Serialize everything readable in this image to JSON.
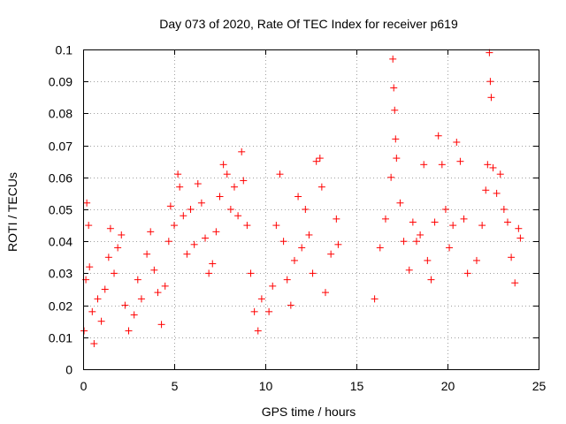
{
  "chart_data": {
    "type": "scatter",
    "title": "Day 073 of 2020, Rate Of TEC Index for receiver p619",
    "xlabel": "GPS time / hours",
    "ylabel": "ROTI / TECUs",
    "xlim": [
      0,
      25
    ],
    "ylim": [
      0,
      0.1
    ],
    "x_ticks": [
      "0",
      "5",
      "10",
      "15",
      "20",
      "25"
    ],
    "y_ticks": [
      "0",
      "0.01",
      "0.02",
      "0.03",
      "0.04",
      "0.05",
      "0.06",
      "0.07",
      "0.08",
      "0.09",
      "0.1"
    ],
    "x_tick_values": [
      0,
      5,
      10,
      15,
      20,
      25
    ],
    "y_tick_values": [
      0,
      0.01,
      0.02,
      0.03,
      0.04,
      0.05,
      0.06,
      0.07,
      0.08,
      0.09,
      0.1
    ],
    "grid": true,
    "marker": "plus",
    "color": "#ff0000",
    "series": [
      {
        "points": [
          [
            0.05,
            0.012
          ],
          [
            0.15,
            0.028
          ],
          [
            0.2,
            0.052
          ],
          [
            0.3,
            0.045
          ],
          [
            0.35,
            0.032
          ],
          [
            0.5,
            0.018
          ],
          [
            0.6,
            0.008
          ],
          [
            0.8,
            0.022
          ],
          [
            1.0,
            0.015
          ],
          [
            1.2,
            0.025
          ],
          [
            1.4,
            0.035
          ],
          [
            1.5,
            0.044
          ],
          [
            1.7,
            0.03
          ],
          [
            1.9,
            0.038
          ],
          [
            2.1,
            0.042
          ],
          [
            2.3,
            0.02
          ],
          [
            2.5,
            0.012
          ],
          [
            2.8,
            0.017
          ],
          [
            3.0,
            0.028
          ],
          [
            3.2,
            0.022
          ],
          [
            3.5,
            0.036
          ],
          [
            3.7,
            0.043
          ],
          [
            3.9,
            0.031
          ],
          [
            4.1,
            0.024
          ],
          [
            4.3,
            0.014
          ],
          [
            4.5,
            0.026
          ],
          [
            4.7,
            0.04
          ],
          [
            4.8,
            0.051
          ],
          [
            5.0,
            0.045
          ],
          [
            5.2,
            0.061
          ],
          [
            5.3,
            0.057
          ],
          [
            5.5,
            0.048
          ],
          [
            5.7,
            0.036
          ],
          [
            5.9,
            0.05
          ],
          [
            6.1,
            0.039
          ],
          [
            6.3,
            0.058
          ],
          [
            6.5,
            0.052
          ],
          [
            6.7,
            0.041
          ],
          [
            6.9,
            0.03
          ],
          [
            7.1,
            0.033
          ],
          [
            7.3,
            0.043
          ],
          [
            7.5,
            0.054
          ],
          [
            7.7,
            0.064
          ],
          [
            7.9,
            0.061
          ],
          [
            8.1,
            0.05
          ],
          [
            8.3,
            0.057
          ],
          [
            8.5,
            0.048
          ],
          [
            8.7,
            0.068
          ],
          [
            8.8,
            0.059
          ],
          [
            9.0,
            0.045
          ],
          [
            9.2,
            0.03
          ],
          [
            9.4,
            0.018
          ],
          [
            9.6,
            0.012
          ],
          [
            9.8,
            0.022
          ],
          [
            10.2,
            0.018
          ],
          [
            10.4,
            0.026
          ],
          [
            10.6,
            0.045
          ],
          [
            10.8,
            0.061
          ],
          [
            11.0,
            0.04
          ],
          [
            11.2,
            0.028
          ],
          [
            11.4,
            0.02
          ],
          [
            11.6,
            0.034
          ],
          [
            11.8,
            0.054
          ],
          [
            12.0,
            0.038
          ],
          [
            12.2,
            0.05
          ],
          [
            12.4,
            0.042
          ],
          [
            12.6,
            0.03
          ],
          [
            12.8,
            0.065
          ],
          [
            13.0,
            0.066
          ],
          [
            13.1,
            0.057
          ],
          [
            13.3,
            0.024
          ],
          [
            13.6,
            0.036
          ],
          [
            13.9,
            0.047
          ],
          [
            14.0,
            0.039
          ],
          [
            16.0,
            0.022
          ],
          [
            16.3,
            0.038
          ],
          [
            16.6,
            0.047
          ],
          [
            16.9,
            0.06
          ],
          [
            17.0,
            0.097
          ],
          [
            17.05,
            0.088
          ],
          [
            17.1,
            0.081
          ],
          [
            17.15,
            0.072
          ],
          [
            17.2,
            0.066
          ],
          [
            17.4,
            0.052
          ],
          [
            17.6,
            0.04
          ],
          [
            17.9,
            0.031
          ],
          [
            18.1,
            0.046
          ],
          [
            18.3,
            0.04
          ],
          [
            18.5,
            0.042
          ],
          [
            18.7,
            0.064
          ],
          [
            18.9,
            0.034
          ],
          [
            19.1,
            0.028
          ],
          [
            19.3,
            0.046
          ],
          [
            19.5,
            0.073
          ],
          [
            19.7,
            0.064
          ],
          [
            19.9,
            0.05
          ],
          [
            20.1,
            0.038
          ],
          [
            20.3,
            0.045
          ],
          [
            20.5,
            0.071
          ],
          [
            20.7,
            0.065
          ],
          [
            20.9,
            0.047
          ],
          [
            21.1,
            0.03
          ],
          [
            21.6,
            0.034
          ],
          [
            21.9,
            0.045
          ],
          [
            22.1,
            0.056
          ],
          [
            22.2,
            0.064
          ],
          [
            22.3,
            0.099
          ],
          [
            22.35,
            0.09
          ],
          [
            22.4,
            0.085
          ],
          [
            22.5,
            0.063
          ],
          [
            22.7,
            0.055
          ],
          [
            22.9,
            0.061
          ],
          [
            23.1,
            0.05
          ],
          [
            23.3,
            0.046
          ],
          [
            23.5,
            0.035
          ],
          [
            23.7,
            0.027
          ],
          [
            23.9,
            0.044
          ],
          [
            24.0,
            0.041
          ]
        ]
      }
    ]
  }
}
